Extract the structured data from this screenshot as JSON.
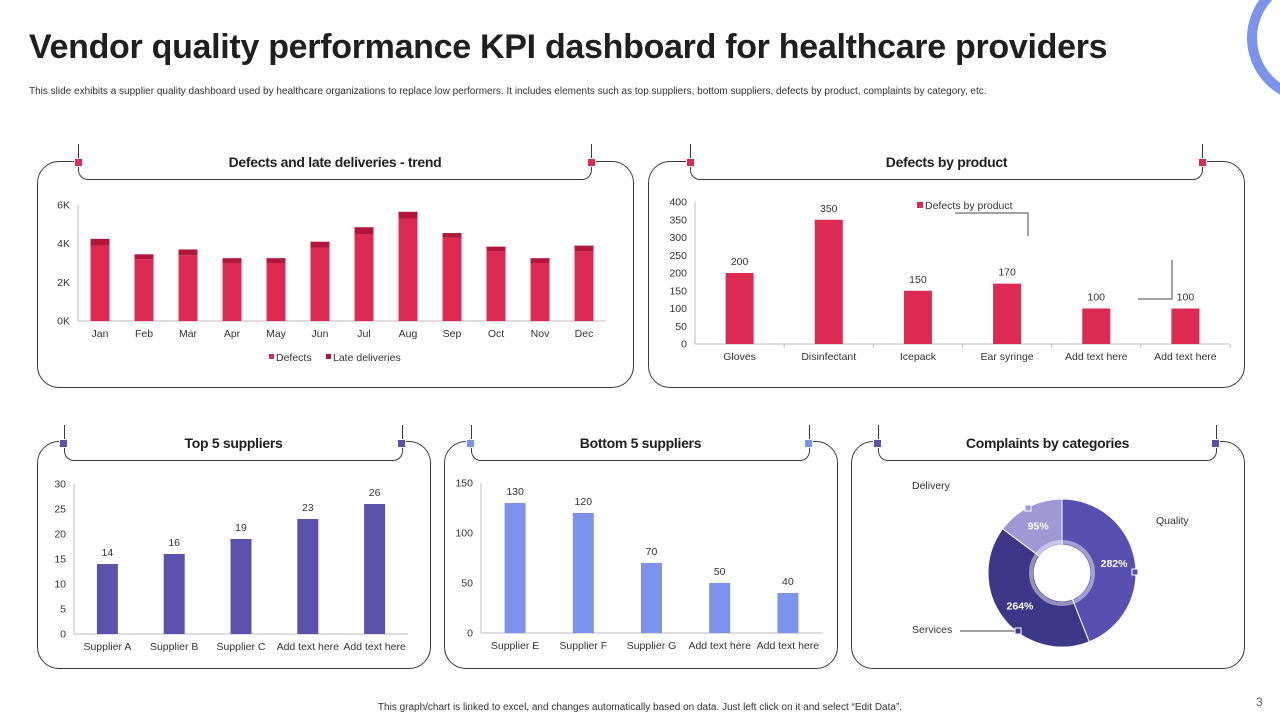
{
  "slide": {
    "title": "Vendor quality performance KPI dashboard for healthcare providers",
    "subtitle": "This slide exhibits a supplier quality dashboard used by healthcare organizations to replace low performers. It includes elements such as top suppliers, bottom suppliers, defects by product, complaints by category, etc.",
    "footer": "This graph/chart is linked to excel, and changes automatically based on data. Just left click on it and select “Edit Data”.",
    "page_number": "3"
  },
  "colors": {
    "crimson": "#DC2A53",
    "crimson_dark": "#B0173A",
    "indigo": "#5B52AC",
    "periwinkle": "#7B93EC",
    "pie_dark": "#3D3788",
    "pie_mid": "#5850B0",
    "pie_light": "#9E98D4"
  },
  "panels": {
    "trend": {
      "title": "Defects and late deliveries - trend",
      "legend": [
        "Defects",
        "Late deliveries"
      ]
    },
    "product": {
      "title": "Defects by product",
      "legend": "Defects by product"
    },
    "top": {
      "title": "Top 5 suppliers"
    },
    "bottom": {
      "title": "Bottom 5 suppliers"
    },
    "complaints": {
      "title": "Complaints by categories"
    }
  },
  "chart_data": [
    {
      "id": "trend",
      "type": "bar",
      "stacked": true,
      "title": "Defects and late deliveries - trend",
      "categories": [
        "Jan",
        "Feb",
        "Mar",
        "Apr",
        "May",
        "Jun",
        "Jul",
        "Aug",
        "Sep",
        "Oct",
        "Nov",
        "Dec"
      ],
      "series": [
        {
          "name": "Defects",
          "values": [
            3900,
            3200,
            3400,
            3000,
            3000,
            3800,
            4500,
            5300,
            4300,
            3600,
            3000,
            3600
          ]
        },
        {
          "name": "Late deliveries",
          "values": [
            350,
            250,
            300,
            250,
            250,
            300,
            350,
            350,
            250,
            250,
            250,
            300
          ]
        }
      ],
      "yticks": [
        "0K",
        "2K",
        "4K",
        "6K"
      ],
      "ylim": [
        0,
        6000
      ]
    },
    {
      "id": "product",
      "type": "bar",
      "title": "Defects by product",
      "categories": [
        "Gloves",
        "Disinfectant",
        "Icepack",
        "Ear syringe",
        "Add text here",
        "Add text here"
      ],
      "values": [
        200,
        350,
        150,
        170,
        100,
        100
      ],
      "yticks": [
        0,
        50,
        100,
        150,
        200,
        250,
        300,
        350,
        400
      ],
      "ylim": [
        0,
        400
      ]
    },
    {
      "id": "top",
      "type": "bar",
      "title": "Top 5 suppliers",
      "categories": [
        "Supplier A",
        "Supplier B",
        "Supplier C",
        "Add text here",
        "Add text here"
      ],
      "values": [
        14,
        16,
        19,
        23,
        26
      ],
      "yticks": [
        0,
        5,
        10,
        15,
        20,
        25,
        30
      ],
      "ylim": [
        0,
        30
      ]
    },
    {
      "id": "bottom",
      "type": "bar",
      "title": "Bottom 5 suppliers",
      "categories": [
        "Supplier E",
        "Supplier F",
        "Supplier G",
        "Add text here",
        "Add text here"
      ],
      "values": [
        130,
        120,
        70,
        50,
        40
      ],
      "yticks": [
        0,
        50,
        100,
        150
      ],
      "ylim": [
        0,
        150
      ]
    },
    {
      "id": "complaints",
      "type": "pie",
      "donut": true,
      "title": "Complaints by categories",
      "categories": [
        "Quality",
        "Services",
        "Delivery"
      ],
      "values": [
        282,
        264,
        95
      ],
      "labels": [
        "282%",
        "264%",
        "95%"
      ]
    }
  ]
}
